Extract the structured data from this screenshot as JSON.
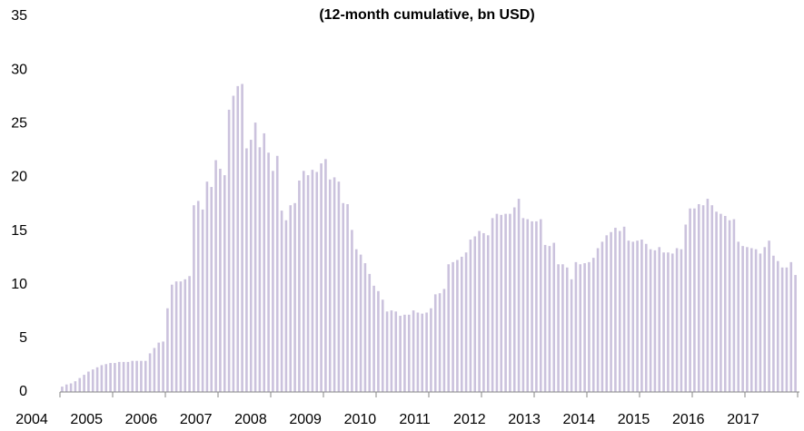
{
  "chart_data": {
    "type": "bar",
    "title": "(12-month cumulative, bn USD)",
    "categories": [
      "2004",
      null,
      null,
      null,
      null,
      null,
      null,
      null,
      null,
      null,
      null,
      null,
      "2005",
      null,
      null,
      null,
      null,
      null,
      null,
      null,
      null,
      null,
      null,
      null,
      "2006",
      null,
      null,
      null,
      null,
      null,
      null,
      null,
      null,
      null,
      null,
      null,
      "2007",
      null,
      null,
      null,
      null,
      null,
      null,
      null,
      null,
      null,
      null,
      null,
      "2008",
      null,
      null,
      null,
      null,
      null,
      null,
      null,
      null,
      null,
      null,
      null,
      "2009",
      null,
      null,
      null,
      null,
      null,
      null,
      null,
      null,
      null,
      null,
      null,
      "2010",
      null,
      null,
      null,
      null,
      null,
      null,
      null,
      null,
      null,
      null,
      null,
      "2011",
      null,
      null,
      null,
      null,
      null,
      null,
      null,
      null,
      null,
      null,
      null,
      "2012",
      null,
      null,
      null,
      null,
      null,
      null,
      null,
      null,
      null,
      null,
      null,
      "2013",
      null,
      null,
      null,
      null,
      null,
      null,
      null,
      null,
      null,
      null,
      null,
      "2014",
      null,
      null,
      null,
      null,
      null,
      null,
      null,
      null,
      null,
      null,
      null,
      "2015",
      null,
      null,
      null,
      null,
      null,
      null,
      null,
      null,
      null,
      null,
      null,
      "2016",
      null,
      null,
      null,
      null,
      null,
      null,
      null,
      null,
      null,
      null,
      null,
      "2017",
      null,
      null,
      null,
      null,
      null,
      null,
      null,
      null,
      null,
      null,
      null
    ],
    "values": [
      0.5,
      0.7,
      0.8,
      1.0,
      1.3,
      1.6,
      1.9,
      2.1,
      2.3,
      2.5,
      2.6,
      2.7,
      2.7,
      2.8,
      2.8,
      2.8,
      2.9,
      2.9,
      2.9,
      2.9,
      3.6,
      4.1,
      4.6,
      4.7,
      7.8,
      10.0,
      10.3,
      10.3,
      10.5,
      10.8,
      17.4,
      17.8,
      17.0,
      19.6,
      19.1,
      21.6,
      20.8,
      20.2,
      26.3,
      27.6,
      28.5,
      28.7,
      22.7,
      23.5,
      25.1,
      22.8,
      24.1,
      22.3,
      20.6,
      22.0,
      16.9,
      16.0,
      17.4,
      17.6,
      19.7,
      20.6,
      20.2,
      20.7,
      20.5,
      21.3,
      21.7,
      19.8,
      20.0,
      19.6,
      17.6,
      17.5,
      15.1,
      13.3,
      12.8,
      12.0,
      11.0,
      9.9,
      9.4,
      8.6,
      7.5,
      7.6,
      7.5,
      7.1,
      7.2,
      7.2,
      7.6,
      7.4,
      7.3,
      7.4,
      7.8,
      9.1,
      9.2,
      9.6,
      11.9,
      12.1,
      12.3,
      12.6,
      13.0,
      14.2,
      14.5,
      15.0,
      14.8,
      14.6,
      16.2,
      16.6,
      16.5,
      16.6,
      16.6,
      17.2,
      18.0,
      16.2,
      16.1,
      15.9,
      15.9,
      16.1,
      13.7,
      13.6,
      13.9,
      11.9,
      11.9,
      11.6,
      10.5,
      12.1,
      11.9,
      12.0,
      12.1,
      12.5,
      13.4,
      14.0,
      14.6,
      14.9,
      15.3,
      15.0,
      15.4,
      14.1,
      14.0,
      14.1,
      14.2,
      13.8,
      13.3,
      13.2,
      13.5,
      13.0,
      13.0,
      12.9,
      13.4,
      13.3,
      15.6,
      17.1,
      17.1,
      17.5,
      17.4,
      18.0,
      17.4,
      16.8,
      16.6,
      16.4,
      16.0,
      16.1,
      14.0,
      13.6,
      13.5,
      13.4,
      13.3,
      12.9,
      13.5,
      14.1,
      12.7,
      12.2,
      11.6,
      11.6,
      12.1,
      10.9
    ],
    "color": "#cbc2dd",
    "ylim": [
      0,
      35
    ],
    "yticks": [
      0,
      5,
      10,
      15,
      20,
      25,
      30,
      35
    ],
    "grid": false
  }
}
